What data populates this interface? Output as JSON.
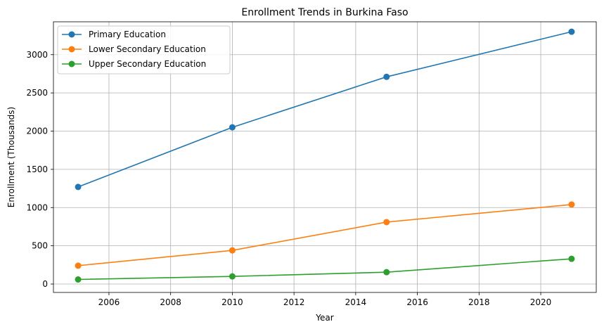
{
  "chart_data": {
    "type": "line",
    "title": "Enrollment Trends in Burkina Faso",
    "xlabel": "Year",
    "ylabel": "Enrollment (Thousands)",
    "xlim": [
      2004.2,
      2021.8
    ],
    "ylim": [
      -110,
      3430
    ],
    "xticks": [
      2006,
      2008,
      2010,
      2012,
      2014,
      2016,
      2018,
      2020
    ],
    "yticks": [
      0,
      500,
      1000,
      1500,
      2000,
      2500,
      3000
    ],
    "grid": true,
    "legend_position": "upper-left",
    "x": [
      2005,
      2010,
      2015,
      2021
    ],
    "series": [
      {
        "name": "Primary Education",
        "color": "#1f77b4",
        "values": [
          1270,
          2050,
          2710,
          3300
        ]
      },
      {
        "name": "Lower Secondary Education",
        "color": "#ff7f0e",
        "values": [
          240,
          440,
          810,
          1040
        ]
      },
      {
        "name": "Upper Secondary Education",
        "color": "#2ca02c",
        "values": [
          60,
          100,
          155,
          330
        ]
      }
    ]
  }
}
